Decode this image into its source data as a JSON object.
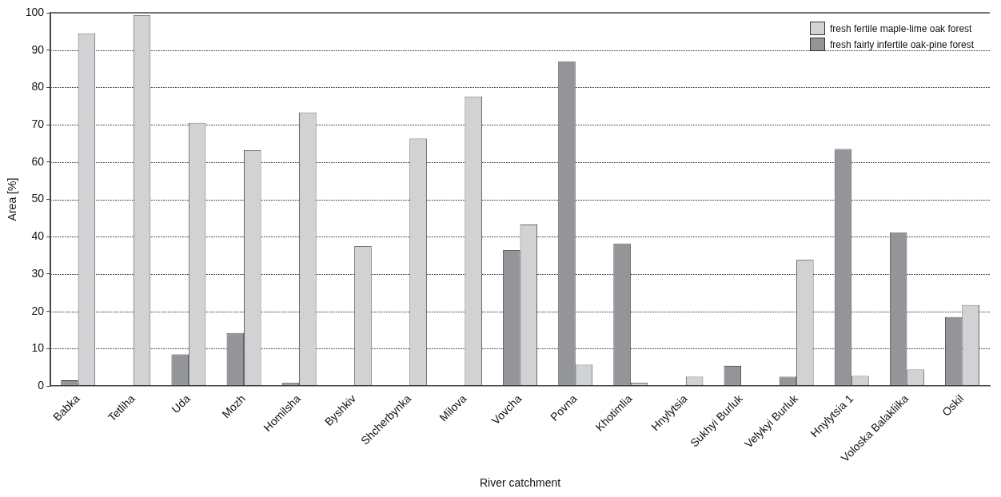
{
  "chart_data": {
    "type": "bar",
    "xlabel": "River catchment",
    "ylabel": "Area [%]",
    "categories": [
      "Babka",
      "Tetliha",
      "Uda",
      "Mozh",
      "Homilsha",
      "Byshkiv",
      "Shcherbynka",
      "Milova",
      "Vovcha",
      "Povna",
      "Khotimlia",
      "Hnylytsia",
      "Sukhyi Burluk",
      "Velykyi Burluk",
      "Hnylytsia 1",
      "Voloska Balakliika",
      "Oskil"
    ],
    "series": [
      {
        "name": "fresh fertile maple-lime oak forest",
        "color": "#d1d2d4",
        "values": [
          94.5,
          99.3,
          70.5,
          63.2,
          73.3,
          37.5,
          66.3,
          77.6,
          43.3,
          5.7,
          0.9,
          2.5,
          null,
          33.8,
          2.7,
          4.4,
          21.7
        ]
      },
      {
        "name": "fresh fairly infertile oak-pine forest",
        "color": "#949599",
        "values": [
          1.5,
          null,
          8.5,
          14.2,
          0.8,
          null,
          null,
          null,
          36.4,
          87.0,
          38.2,
          null,
          5.4,
          2.5,
          63.5,
          41.2,
          18.5
        ]
      }
    ],
    "ylim": [
      0,
      100
    ],
    "yticks": [
      0,
      10,
      20,
      30,
      40,
      50,
      60,
      70,
      80,
      90,
      100
    ],
    "grid": "y",
    "legend": "top right"
  }
}
